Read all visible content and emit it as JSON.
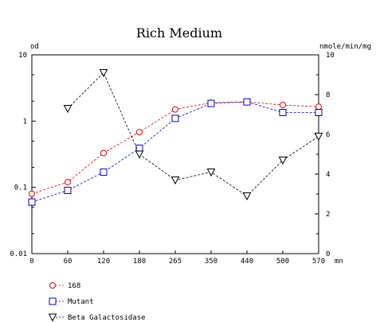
{
  "chart_data": {
    "type": "line",
    "title": "Rich Medium",
    "y_left_label": "od",
    "y_right_label": "nmole/min/mg",
    "x_label": "mn",
    "x": [
      0,
      60,
      120,
      180,
      265,
      350,
      440,
      500,
      570
    ],
    "x_tick_labels": [
      "0",
      "60",
      "120",
      "180",
      "265",
      "350",
      "440",
      "500",
      "570"
    ],
    "y_left_scale": "log",
    "y_left_range": [
      0.01,
      10
    ],
    "y_left_tick_labels": [
      "10",
      "1",
      "0.1",
      "0.01"
    ],
    "y_right_range": [
      0,
      10
    ],
    "y_right_tick_labels": [
      "10",
      "8",
      "6",
      "4",
      "2",
      "0"
    ],
    "grid": false,
    "series": [
      {
        "name": "168",
        "axis": "left",
        "color": "#e00000",
        "marker": "circle",
        "values": [
          0.08,
          0.12,
          0.33,
          0.68,
          1.5,
          1.9,
          1.95,
          1.75,
          1.65
        ]
      },
      {
        "name": "Mutant",
        "axis": "left",
        "color": "#0000cc",
        "marker": "square",
        "values": [
          0.06,
          0.09,
          0.17,
          0.39,
          1.1,
          1.85,
          1.95,
          1.35,
          1.35
        ]
      },
      {
        "name": "Beta Galactosidase",
        "axis": "right",
        "color": "#000000",
        "marker": "triangle-down",
        "x": [
          60,
          120,
          180,
          265,
          350,
          440,
          500,
          570
        ],
        "values": [
          7.3,
          9.1,
          5.0,
          3.7,
          4.1,
          2.9,
          4.7,
          5.9
        ]
      }
    ],
    "legend_position": "bottom-left"
  }
}
